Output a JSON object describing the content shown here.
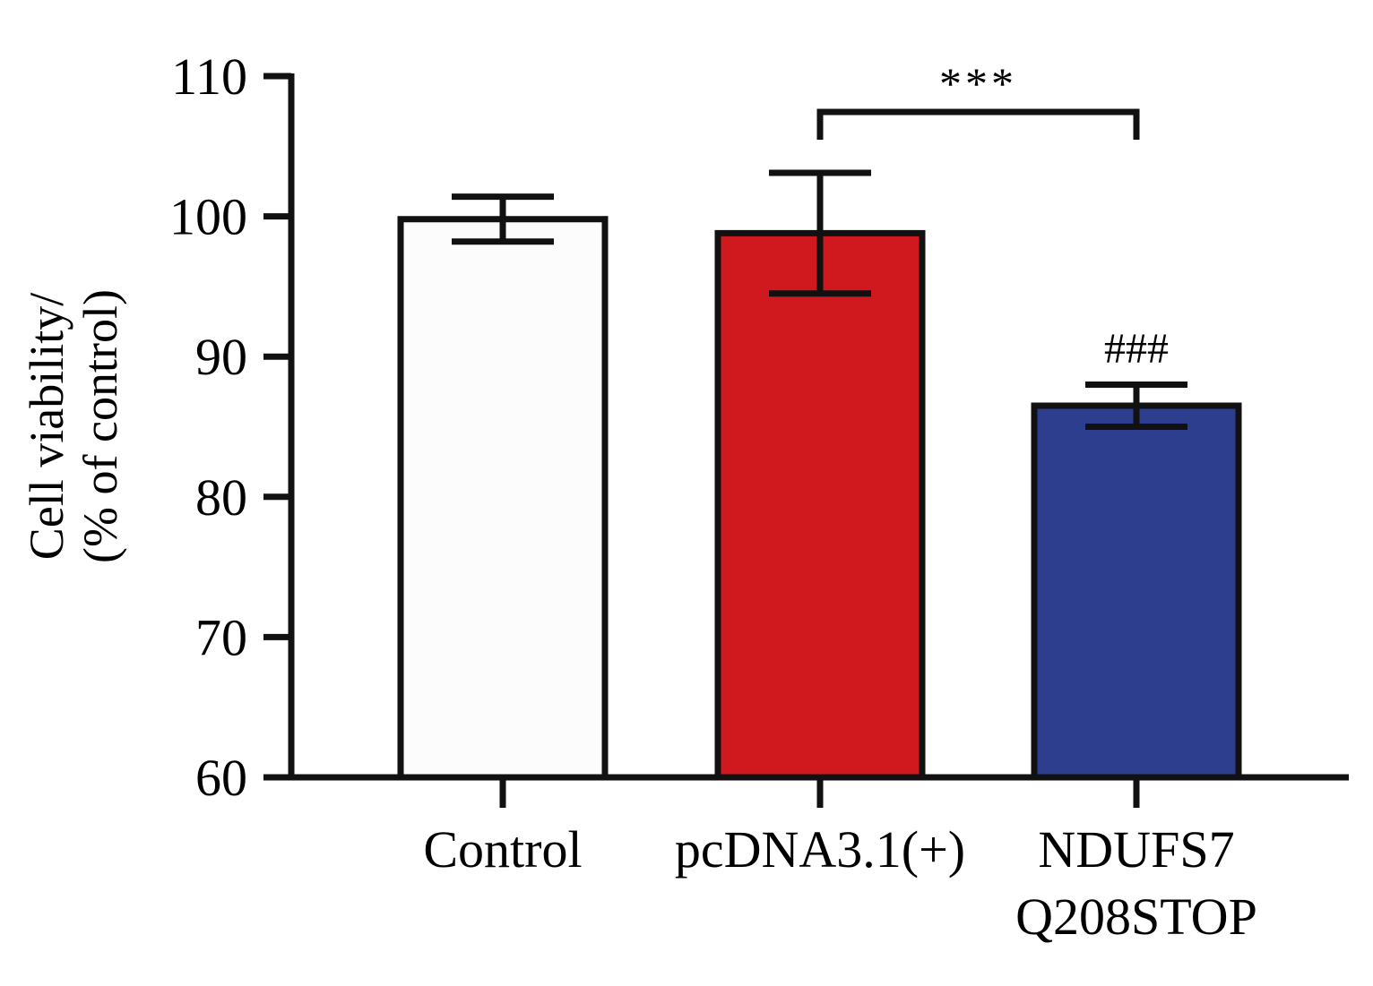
{
  "chart_data": {
    "type": "bar",
    "title": "",
    "xlabel": "",
    "ylabel_lines": [
      "Cell viability/",
      "(% of control)"
    ],
    "ylim": [
      60,
      110
    ],
    "yticks": [
      60,
      70,
      80,
      90,
      100,
      110
    ],
    "categories": [
      {
        "lines": [
          "Control"
        ]
      },
      {
        "lines": [
          "pcDNA3.1(+)"
        ]
      },
      {
        "lines": [
          "NDUFS7",
          "Q208STOP"
        ]
      }
    ],
    "values": [
      99.8,
      98.8,
      86.5
    ],
    "errors": [
      1.6,
      4.3,
      1.5
    ],
    "colors": [
      "#fcfcfc",
      "#d0191e",
      "#2d3e8e"
    ],
    "annotations": [
      {
        "text": "***",
        "type": "bracket",
        "from": 1,
        "to": 2
      },
      {
        "text": "###",
        "type": "above-bar",
        "bar": 2
      }
    ],
    "grid": false,
    "legend": "none"
  }
}
